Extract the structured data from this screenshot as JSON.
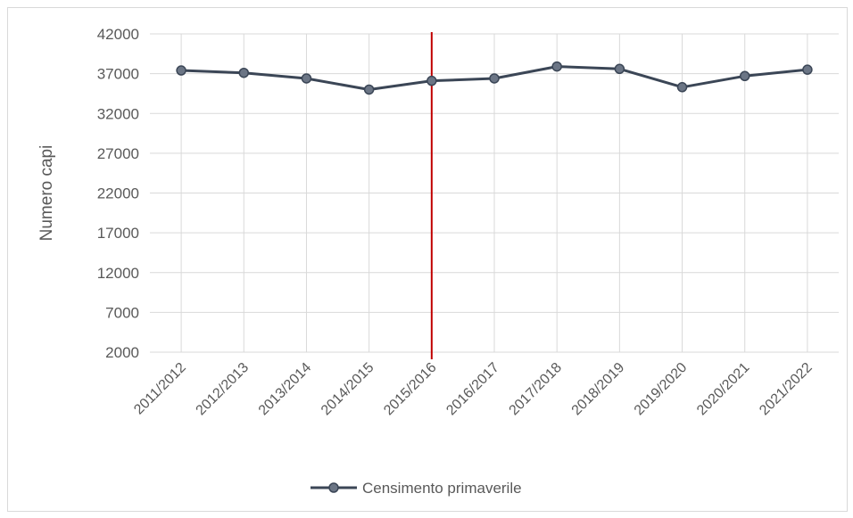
{
  "chart_data": {
    "type": "line",
    "categories": [
      "2011/2012",
      "2012/2013",
      "2013/2014",
      "2014/2015",
      "2015/2016",
      "2016/2017",
      "2017/2018",
      "2018/2019",
      "2019/2020",
      "2020/2021",
      "2021/2022"
    ],
    "series": [
      {
        "name": "Censimento primaverile",
        "values": [
          37400,
          37100,
          36400,
          35000,
          36100,
          36400,
          37900,
          37600,
          35300,
          36700,
          37500
        ],
        "color": "#3b4656"
      }
    ],
    "ylabel": "Numero capi",
    "xlabel": "",
    "ylim": [
      2000,
      42000
    ],
    "yticks": [
      2000,
      7000,
      12000,
      17000,
      22000,
      27000,
      32000,
      37000,
      42000
    ],
    "grid": true,
    "legend_position": "bottom",
    "reference_line": {
      "category": "2015/2016",
      "color": "#c00000"
    }
  }
}
